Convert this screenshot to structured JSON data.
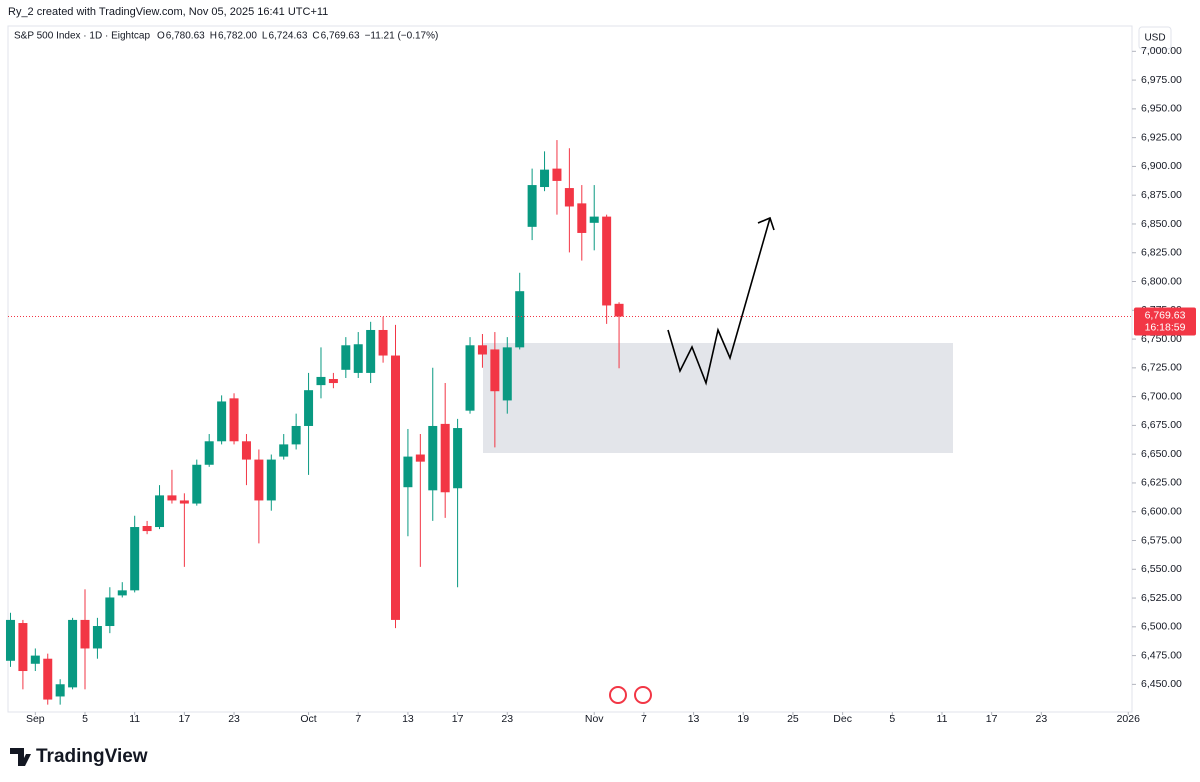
{
  "header": {
    "credit": "Ry_2 created with TradingView.com, Nov 05, 2025 16:41 UTC+11",
    "brand": "TradingView"
  },
  "chart_data": {
    "type": "candlestick",
    "symbol": "S&P 500 Index · 1D · Eightcap",
    "ohlc_header": [
      {
        "letter": "O",
        "text": "6,780.63"
      },
      {
        "letter": "H",
        "text": "6,782.00"
      },
      {
        "letter": "L",
        "text": "6,724.63"
      },
      {
        "letter": "C",
        "text": "6,769.63"
      }
    ],
    "change": "−11.21 (−0.17%)",
    "currency": "USD",
    "up_color": "#089981",
    "down_color": "#f23645",
    "categories": [
      null,
      null,
      null,
      null,
      null,
      null,
      null,
      null,
      null,
      null,
      null,
      null,
      null,
      null,
      null,
      null,
      null,
      null,
      null,
      null,
      null,
      null,
      null,
      null,
      null,
      null,
      null,
      null,
      null,
      null,
      null,
      null,
      null,
      null,
      null,
      null,
      null,
      null,
      null,
      null,
      null,
      null,
      null,
      null,
      null,
      null,
      null,
      null,
      null,
      null
    ],
    "open": [
      6470.5,
      6503.3,
      6467.9,
      6472.3,
      6439.5,
      6447.4,
      6506,
      6481.2,
      6500.7,
      6527.3,
      6531.7,
      6587.6,
      6586.7,
      6614.2,
      6609.8,
      6607.1,
      6640.8,
      6661.2,
      6698.5,
      6661.2,
      6645.3,
      6609.8,
      6647.9,
      6658.5,
      6674.5,
      6710,
      6715.3,
      6723.3,
      6720.6,
      6720.6,
      6757.9,
      6735.7,
      6621.3,
      6649.7,
      6618.6,
      6676.3,
      6620.4,
      6687.8,
      6744.6,
      6741,
      6696.7,
      6742.8,
      6847.5,
      6882.1,
      6898.1,
      6881.2,
      6867.9,
      6851,
      6856.4,
      6780.63
    ],
    "high": [
      6512.2,
      6506,
      6481.2,
      6476.7,
      6454.5,
      6507.8,
      6532.6,
      6507.8,
      6534.4,
      6538.8,
      6596.5,
      6592,
      6623.1,
      6636.4,
      6616,
      6645.3,
      6667.5,
      6701.1,
      6702.9,
      6667.5,
      6654.1,
      6649.7,
      6667.5,
      6685.2,
      6720.6,
      6742.8,
      6720.6,
      6751.7,
      6756.1,
      6765,
      6769.4,
      6762.3,
      6671.9,
      6667.5,
      6725.1,
      6711.8,
      6680.7,
      6751.7,
      6754.4,
      6756.1,
      6751.7,
      6807.6,
      6898.1,
      6913.1,
      6922.9,
      6915.8,
      6883.8,
      6883.8,
      6858.1,
      6782
    ],
    "low": [
      6465.2,
      6445.7,
      6461.6,
      6432.4,
      6432.4,
      6445.7,
      6445.7,
      6472.3,
      6494.5,
      6525.5,
      6529.9,
      6580.5,
      6584.9,
      6607.1,
      6552.1,
      6605.3,
      6639,
      6658.5,
      6658.5,
      6623.1,
      6572.5,
      6600.9,
      6645.3,
      6654.1,
      6632,
      6698.5,
      6707.3,
      6716.2,
      6716.2,
      6711.8,
      6729.5,
      6498.9,
      6578.7,
      6552.1,
      6592,
      6594.7,
      6534.4,
      6685.2,
      6725.1,
      6655.9,
      6685.2,
      6741,
      6836,
      6878.5,
      6858.1,
      6825.3,
      6818.2,
      6827.1,
      6763.2,
      6724.63
    ],
    "close": [
      6506,
      6461.6,
      6475,
      6436.8,
      6450.1,
      6506,
      6481.2,
      6500.7,
      6525.5,
      6531.7,
      6586.7,
      6583.2,
      6614.2,
      6609.8,
      6607.1,
      6640.8,
      6661.2,
      6695.8,
      6661.2,
      6645.3,
      6609.8,
      6645.3,
      6658.5,
      6674.5,
      6705.6,
      6717.1,
      6711.8,
      6744.6,
      6745.5,
      6757.9,
      6735.7,
      6506,
      6647.9,
      6643.5,
      6674.5,
      6616.9,
      6672.7,
      6744.6,
      6736.6,
      6704.7,
      6742.8,
      6791.6,
      6883.8,
      6897.2,
      6887.4,
      6865.2,
      6842.2,
      6856.4,
      6779.2,
      6769.63
    ],
    "last_price": {
      "value": 6769.63,
      "label": "6,769.63"
    },
    "countdown": "16:18:59",
    "xlim": [
      -0.2,
      90.3
    ],
    "xticks": [
      {
        "value": 2,
        "label": "Sep"
      },
      {
        "value": 6,
        "label": "5"
      },
      {
        "value": 10,
        "label": "11"
      },
      {
        "value": 14,
        "label": "17"
      },
      {
        "value": 18,
        "label": "23"
      },
      {
        "value": 24,
        "label": "Oct"
      },
      {
        "value": 28,
        "label": "7"
      },
      {
        "value": 32,
        "label": "13"
      },
      {
        "value": 36,
        "label": "17"
      },
      {
        "value": 40,
        "label": "23"
      },
      {
        "value": 47,
        "label": "Nov"
      },
      {
        "value": 51,
        "label": "7"
      },
      {
        "value": 55,
        "label": "13"
      },
      {
        "value": 59,
        "label": "19"
      },
      {
        "value": 63,
        "label": "25"
      },
      {
        "value": 67,
        "label": "Dec"
      },
      {
        "value": 71,
        "label": "5"
      },
      {
        "value": 75,
        "label": "11"
      },
      {
        "value": 79,
        "label": "17"
      },
      {
        "value": 83,
        "label": "23"
      },
      {
        "value": 90,
        "label": "2026"
      }
    ],
    "ylim": [
      6426,
      7022
    ],
    "yticks": [
      {
        "value": 6450,
        "label": "6,450.00"
      },
      {
        "value": 6475,
        "label": "6,475.00"
      },
      {
        "value": 6500,
        "label": "6,500.00"
      },
      {
        "value": 6525,
        "label": "6,525.00"
      },
      {
        "value": 6550,
        "label": "6,550.00"
      },
      {
        "value": 6575,
        "label": "6,575.00"
      },
      {
        "value": 6600,
        "label": "6,600.00"
      },
      {
        "value": 6625,
        "label": "6,625.00"
      },
      {
        "value": 6650,
        "label": "6,650.00"
      },
      {
        "value": 6675,
        "label": "6,675.00"
      },
      {
        "value": 6700,
        "label": "6,700.00"
      },
      {
        "value": 6725,
        "label": "6,725.00"
      },
      {
        "value": 6750,
        "label": "6,750.00"
      },
      {
        "value": 6775,
        "label": "6,775.00"
      },
      {
        "value": 6800,
        "label": "6,800.00"
      },
      {
        "value": 6825,
        "label": "6,825.00"
      },
      {
        "value": 6850,
        "label": "6,850.00"
      },
      {
        "value": 6875,
        "label": "6,875.00"
      },
      {
        "value": 6900,
        "label": "6,900.00"
      },
      {
        "value": 6925,
        "label": "6,925.00"
      },
      {
        "value": 6950,
        "label": "6,950.00"
      },
      {
        "value": 6975,
        "label": "6,975.00"
      },
      {
        "value": 7000,
        "label": "7,000.00"
      }
    ],
    "grid": false
  }
}
